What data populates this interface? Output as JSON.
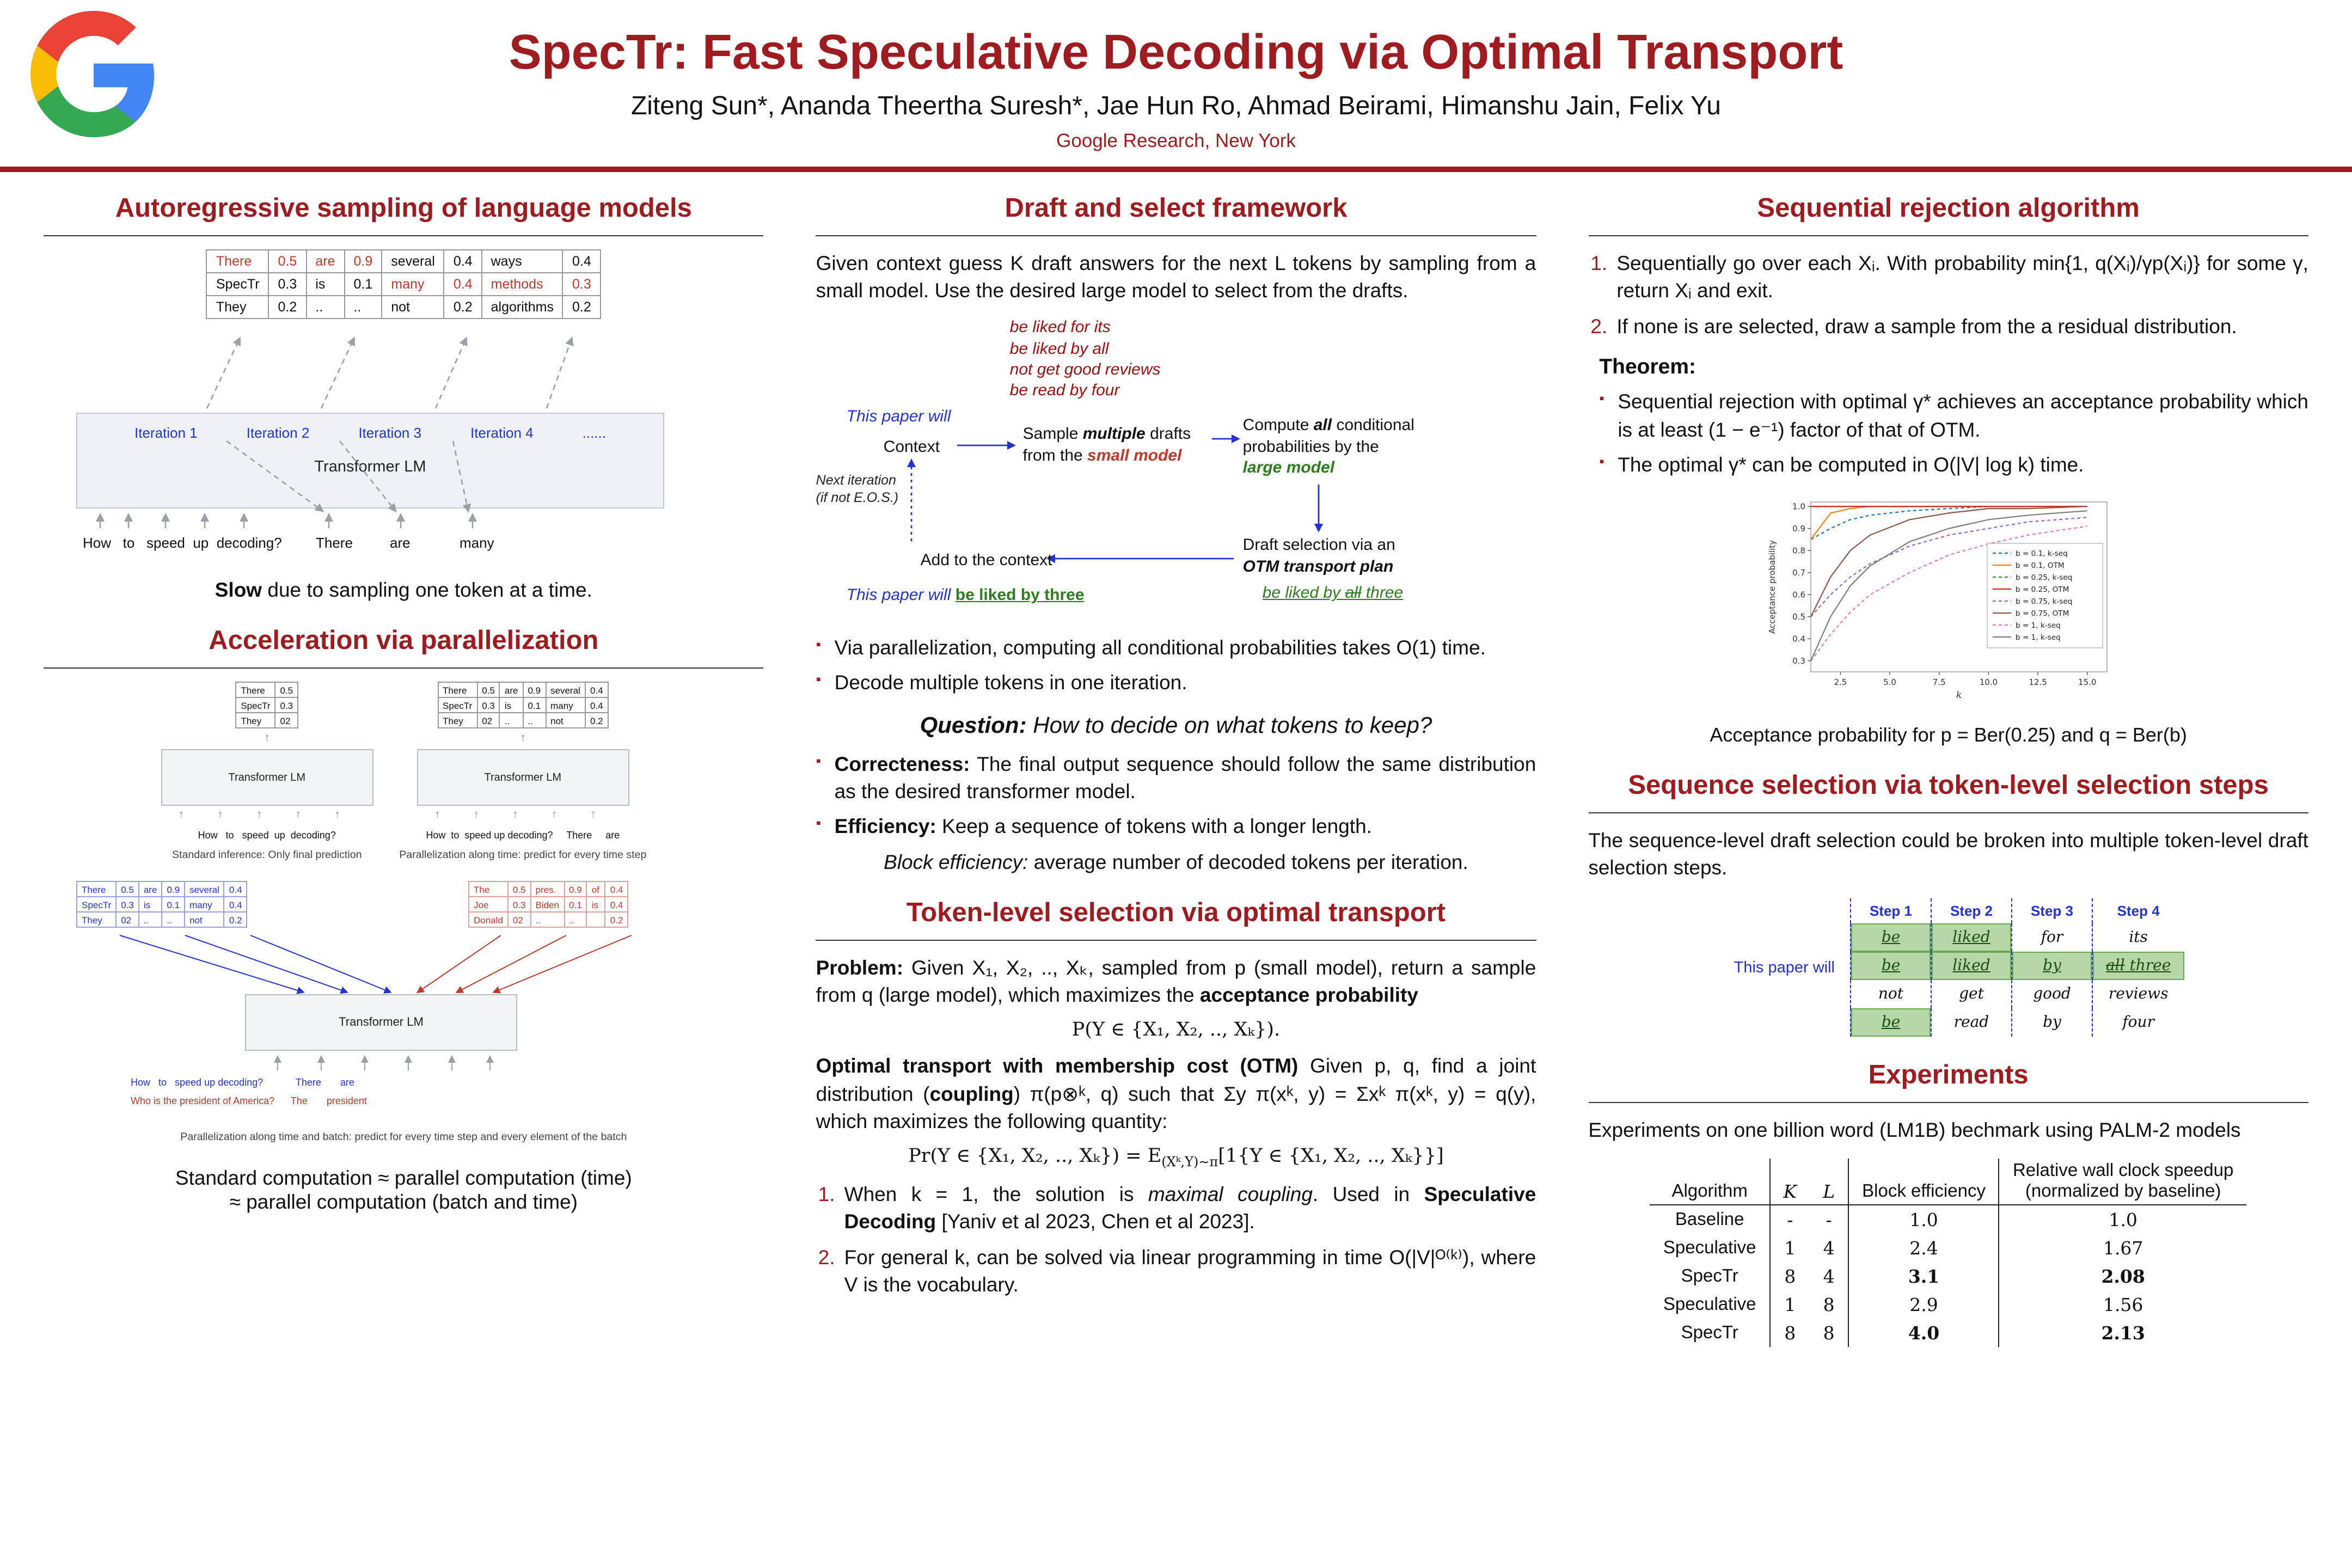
{
  "colors": {
    "accent": "#9e1b1f",
    "blue": "#2533cb",
    "green": "#2e7d1e",
    "draft_red": "#991111",
    "token_red": "#c0392b",
    "highlight_green_bg": "#b6d7a8"
  },
  "header": {
    "logo": "google-g-logo",
    "title": "SpecTr: Fast Speculative Decoding via Optimal Transport",
    "authors": "Ziteng Sun*, Ananda Theertha Suresh*, Jae Hun Ro, Ahmad Beirami, Himanshu Jain, Felix Yu",
    "affiliation": "Google Research, New York"
  },
  "col1": {
    "h1": "Autoregressive sampling of language models",
    "prob_rows": [
      [
        "There",
        "0.5",
        "are",
        "0.9",
        "several",
        "0.4",
        "ways",
        "0.4"
      ],
      [
        "SpecTr",
        "0.3",
        "is",
        "0.1",
        "many",
        "0.4",
        "methods",
        "0.3"
      ],
      [
        "They",
        "0.2",
        "..",
        "..",
        "not",
        "0.2",
        "algorithms",
        "0.2"
      ]
    ],
    "iterations": [
      "Iteration 1",
      "Iteration 2",
      "Iteration 3",
      "Iteration 4",
      "......"
    ],
    "transformer": "Transformer LM",
    "prompt": "How   to   speed  up  decoding?",
    "outputs": [
      "There",
      "are",
      "many"
    ],
    "slow_bold": "Slow",
    "slow_rest": " due to sampling one token at a time.",
    "h2": "Acceleration via parallelization",
    "mini1_rows": [
      [
        "There",
        "0.5"
      ],
      [
        "SpecTr",
        "0.3"
      ],
      [
        "They",
        "02"
      ]
    ],
    "mini1_tf": "Transformer LM",
    "mini1_prompt": "How   to   speed  up  decoding?",
    "mini1_caption": "Standard inference: Only final prediction",
    "mini2_rows": [
      [
        "There",
        "0.5",
        "are",
        "0.9",
        "several",
        "0.4"
      ],
      [
        "SpecTr",
        "0.3",
        "is",
        "0.1",
        "many",
        "0.4"
      ],
      [
        "They",
        "02",
        "..",
        "..",
        "not",
        "0.2"
      ]
    ],
    "mini2_tf": "Transformer LM",
    "mini2_prompt": "How  to  speed up decoding?",
    "mini2_out1": "There",
    "mini2_out2": "are",
    "mini2_caption": "Parallelization along time: predict for every time step",
    "batch_blue_rows": [
      [
        "There",
        "0.5",
        "are",
        "0.9",
        "several",
        "0.4"
      ],
      [
        "SpecTr",
        "0.3",
        "is",
        "0.1",
        "many",
        "0.4"
      ],
      [
        "They",
        "02",
        "..",
        "..",
        "not",
        "0.2"
      ]
    ],
    "batch_red_rows": [
      [
        "The",
        "0.5",
        "pres.",
        "0.9",
        "of",
        "0.4"
      ],
      [
        "Joe",
        "0.3",
        "Biden",
        "0.1",
        "is",
        "0.4"
      ],
      [
        "Donald",
        "02",
        "..",
        "..",
        "",
        "0.2"
      ]
    ],
    "batch_tf": "Transformer LM",
    "batch_blue_line": "How   to   speed up decoding?            There       are",
    "batch_red_line": "Who is the president of America?      The       president",
    "batch_caption": "Parallelization along time and batch: predict for every time step and every element of the batch",
    "approx1": "Standard computation ≈ parallel computation (time)",
    "approx2": "≈ parallel computation (batch and time)"
  },
  "col2": {
    "h1": "Draft and select framework",
    "intro": "Given context guess K draft answers for the next L tokens by sampling from a small model. Use the desired large model to select from the drafts.",
    "diagram": {
      "drafts": [
        "be liked for its",
        "be liked by all",
        "not get good reviews",
        "be read by four"
      ],
      "this_paper": "This paper will",
      "context": "Context",
      "sample_pre": "Sample ",
      "sample_bold": "multiple",
      "sample_mid": " drafts",
      "sample_line2_pre": "from the ",
      "sample_small_model": "small model",
      "compute_pre": "Compute ",
      "compute_bold": "all",
      "compute_mid1": " conditional",
      "compute_mid2": "probabilities by the",
      "compute_large_model": "large model",
      "select_pre": "Draft selection via an",
      "select_bold": "OTM transport plan",
      "next_iter_1": "Next iteration",
      "next_iter_2": "(if not E.O.S.)",
      "add_context": "Add to the context",
      "result_blue": "This paper will ",
      "result_green": "be liked by three",
      "picked_green_pre": "be liked by ",
      "picked_struck": "all",
      "picked_green_post": " three"
    },
    "bullet1": "Via parallelization, computing all conditional probabilities takes O(1) time.",
    "bullet2": "Decode multiple tokens in one iteration.",
    "question_label": "Question:",
    "question_text": " How to decide on what tokens to keep?",
    "correct_label": "Correcteness:",
    "correct_text": " The final output sequence should follow the same distribution as the desired transformer model.",
    "eff_label": "Efficiency:",
    "eff_text": " Keep a sequence of tokens with a longer length.",
    "blockeff_label": "Block efficiency:",
    "blockeff_text": " average number of decoded tokens per iteration.",
    "h2": "Token-level selection via optimal transport",
    "problem_label": "Problem:",
    "problem_text": " Given X₁, X₂, .., Xₖ, sampled from p (small model), return a sample from q (large model), which maximizes the ",
    "problem_bold": "acceptance probability",
    "problem_eq": "P(Y ∈ {X₁, X₂, .., Xₖ}).",
    "otm_label": "Optimal transport with membership cost (OTM)",
    "otm_text": " Given p, q, find a joint distribution (",
    "otm_coupling": "coupling",
    "otm_text2": ") π(p⊗ᵏ, q) such that Σy π(xᵏ, y) = Σxᵏ π(xᵏ, y) = q(y), which maximizes the following quantity:",
    "eq_pre": "Pr(Y ∈ {X₁, X₂, .., Xₖ}) = E",
    "eq_sub": "(Xᵏ,Y)∼π",
    "eq_post": "[1{Y ∈ {X₁, X₂, .., Xₖ}}]",
    "li1_pre": "When k = 1, the solution is ",
    "li1_italic": "maximal coupling",
    "li1_mid": ". Used in ",
    "li1_bold": "Speculative Decoding",
    "li1_post": " [Yaniv et al 2023, Chen et al 2023].",
    "li2": "For general k, can be solved via linear programming in time O(|V|ᴼ⁽ᵏ⁾), where V is the vocabulary."
  },
  "col3": {
    "h1": "Sequential rejection algorithm",
    "li1": "Sequentially go over each Xᵢ. With probability min{1, q(Xᵢ)/γp(Xᵢ)} for some γ, return Xᵢ and exit.",
    "li2": "If none is are selected, draw a sample from the a residual distribution.",
    "theorem": "Theorem:",
    "tb1": "Sequential rejection with optimal γ* achieves an acceptance probability which is at least (1 − e⁻¹) factor of that of OTM.",
    "tb2": "The optimal γ* can be computed in O(|V| log k) time.",
    "chart_caption": "Acceptance probability for p = Ber(0.25) and q = Ber(b)",
    "h2": "Sequence selection via token-level selection steps",
    "seq_text": "The sequence-level draft selection could be broken into multiple token-level draft selection steps.",
    "steps": {
      "label": "This paper will",
      "headers": [
        "Step 1",
        "Step 2",
        "Step 3",
        "Step 4"
      ],
      "rows": [
        [
          "be",
          "liked",
          "for",
          "its"
        ],
        [
          "be",
          "liked",
          "by",
          ""
        ],
        [
          "not",
          "get",
          "good",
          "reviews"
        ],
        [
          "be",
          "read",
          "by",
          "four"
        ]
      ],
      "struck_word": "all",
      "after_struck": "three"
    },
    "h3": "Experiments",
    "exp_text": "Experiments on one billion word (LM1B) bechmark using PALM-2 models",
    "exp": {
      "headers": [
        "Algorithm",
        "K",
        "L",
        "Block efficiency",
        "Relative wall clock speedup"
      ],
      "header_note": "(normalized by baseline)",
      "rows": [
        [
          "Baseline",
          "-",
          "-",
          "1.0",
          "1.0"
        ],
        [
          "Speculative",
          "1",
          "4",
          "2.4",
          "1.67"
        ],
        [
          "SpecTr",
          "8",
          "4",
          "3.1",
          "2.08"
        ],
        [
          "Speculative",
          "1",
          "8",
          "2.9",
          "1.56"
        ],
        [
          "SpecTr",
          "8",
          "8",
          "4.0",
          "2.13"
        ]
      ]
    }
  },
  "chart_data": {
    "type": "line",
    "title": "",
    "xlabel": "k",
    "ylabel": "Acceptance probability",
    "xlim": [
      1,
      16
    ],
    "ylim": [
      0.25,
      1.02
    ],
    "xticks": [
      2.5,
      5.0,
      7.5,
      10.0,
      12.5,
      15.0
    ],
    "yticks": [
      0.3,
      0.4,
      0.5,
      0.6,
      0.7,
      0.8,
      0.9,
      1.0
    ],
    "grid": false,
    "legend_position": "right",
    "x": [
      1,
      2,
      3,
      4,
      6,
      8,
      10,
      12,
      15
    ],
    "series": [
      {
        "name": "b = 0.1, k-seq",
        "color": "#1f77b4",
        "dash": true,
        "values": [
          0.85,
          0.9,
          0.94,
          0.96,
          0.98,
          0.99,
          1.0,
          1.0,
          1.0
        ]
      },
      {
        "name": "b = 0.1, OTM",
        "color": "#ff7f0e",
        "dash": false,
        "values": [
          0.85,
          0.97,
          0.99,
          1.0,
          1.0,
          1.0,
          1.0,
          1.0,
          1.0
        ]
      },
      {
        "name": "b = 0.25, k-seq",
        "color": "#2ca02c",
        "dash": true,
        "values": [
          1.0,
          1.0,
          1.0,
          1.0,
          1.0,
          1.0,
          1.0,
          1.0,
          1.0
        ]
      },
      {
        "name": "b = 0.25, OTM",
        "color": "#d62728",
        "dash": false,
        "values": [
          1.0,
          1.0,
          1.0,
          1.0,
          1.0,
          1.0,
          1.0,
          1.0,
          1.0
        ]
      },
      {
        "name": "b = 0.75, k-seq",
        "color": "#9467bd",
        "dash": true,
        "values": [
          0.5,
          0.6,
          0.68,
          0.74,
          0.82,
          0.87,
          0.9,
          0.93,
          0.95
        ]
      },
      {
        "name": "b = 0.75, OTM",
        "color": "#8c564b",
        "dash": false,
        "values": [
          0.5,
          0.68,
          0.8,
          0.87,
          0.94,
          0.97,
          0.99,
          0.99,
          1.0
        ]
      },
      {
        "name": "b = 1, k-seq",
        "color": "#e377c2",
        "dash": true,
        "values": [
          0.3,
          0.42,
          0.52,
          0.6,
          0.7,
          0.78,
          0.83,
          0.87,
          0.91
        ]
      },
      {
        "name": "b = 1, k-seq",
        "color": "#7f7f7f",
        "dash": false,
        "values": [
          0.3,
          0.5,
          0.64,
          0.73,
          0.84,
          0.9,
          0.94,
          0.96,
          0.98
        ]
      }
    ]
  }
}
